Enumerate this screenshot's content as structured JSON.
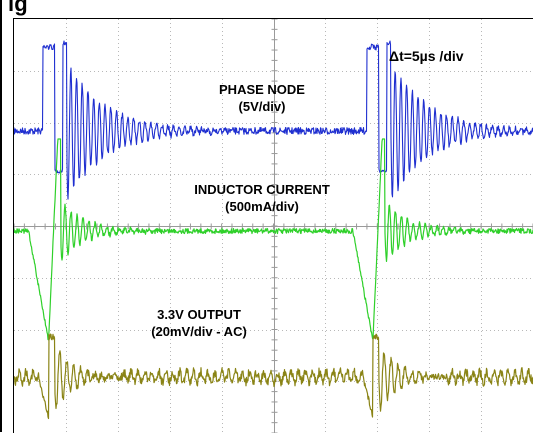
{
  "header": {
    "title_fragment": "ig"
  },
  "chart_data": {
    "type": "line",
    "title": "",
    "timebase_label": "Δt=5µs /div",
    "grid": true,
    "grid_divisions": {
      "x": 10,
      "y": 8
    },
    "channel_labels": [
      {
        "name": "PHASE NODE",
        "scale": "(5V/div)"
      },
      {
        "name": "INDUCTOR CURRENT",
        "scale": "(500mA/div)"
      },
      {
        "name": "3.3V OUTPUT",
        "scale": "(20mV/div - AC)"
      }
    ],
    "series": [
      {
        "name": "PHASE NODE",
        "color": "#1f2fd0"
      },
      {
        "name": "INDUCTOR CURRENT",
        "color": "#2fd02a"
      },
      {
        "name": "3.3V OUTPUT",
        "color": "#8a8416"
      }
    ],
    "switching_events_div": [
      0.55,
      6.8
    ]
  }
}
